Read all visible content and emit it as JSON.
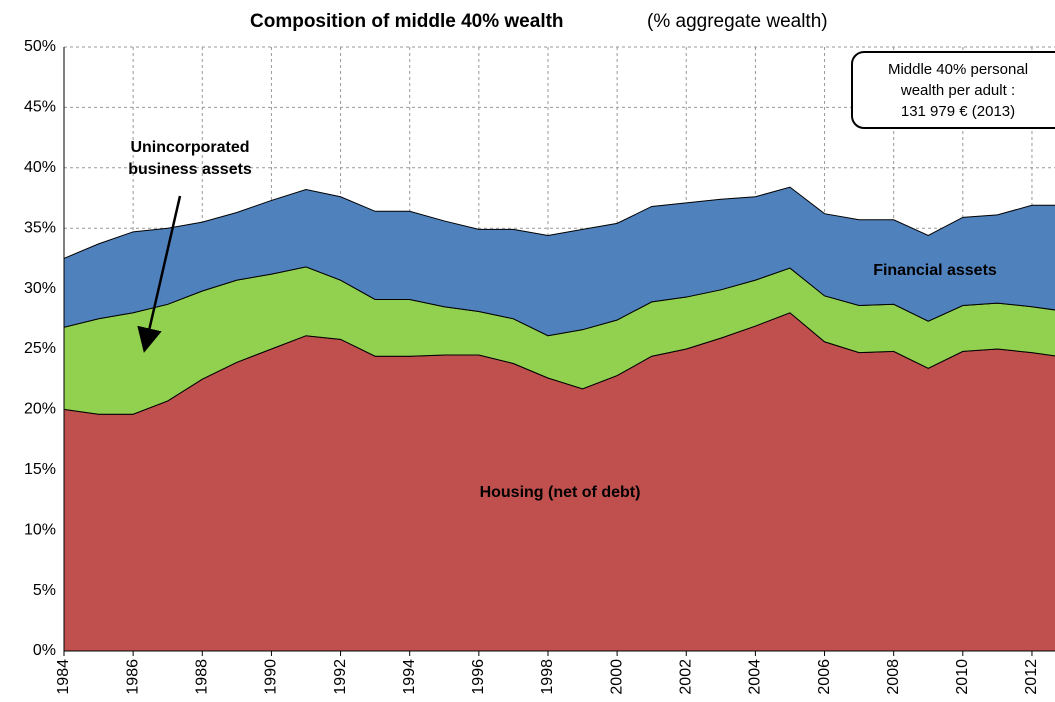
{
  "chart_data": {
    "type": "stacked_area",
    "title": "Composition of middle 40% wealth",
    "title_note": "(% aggregate wealth)",
    "x": [
      1984,
      1985,
      1986,
      1987,
      1988,
      1989,
      1990,
      1991,
      1992,
      1993,
      1994,
      1995,
      1996,
      1997,
      1998,
      1999,
      2000,
      2001,
      2002,
      2003,
      2004,
      2005,
      2006,
      2007,
      2008,
      2009,
      2010,
      2011,
      2012,
      2013
    ],
    "series": [
      {
        "name": "Housing (net of debt)",
        "color": "#c0504d",
        "values": [
          20.0,
          19.6,
          19.6,
          20.7,
          22.5,
          23.9,
          25.0,
          26.1,
          25.8,
          24.4,
          24.4,
          24.5,
          24.5,
          23.8,
          22.6,
          21.7,
          22.8,
          24.4,
          25.0,
          25.9,
          26.9,
          28.0,
          25.6,
          24.7,
          24.8,
          23.4,
          24.8,
          25.0,
          24.7,
          24.3
        ]
      },
      {
        "name": "Unincorporated business assets",
        "color": "#92d050",
        "values": [
          6.8,
          7.9,
          8.4,
          8.0,
          7.3,
          6.8,
          6.2,
          5.7,
          4.9,
          4.7,
          4.7,
          4.0,
          3.6,
          3.7,
          3.5,
          4.9,
          4.6,
          4.5,
          4.3,
          4.0,
          3.8,
          3.7,
          3.8,
          3.9,
          3.9,
          3.9,
          3.8,
          3.8,
          3.8,
          3.8
        ]
      },
      {
        "name": "Financial assets",
        "color": "#4f81bd",
        "values": [
          5.7,
          6.2,
          6.7,
          6.3,
          5.7,
          5.6,
          6.1,
          6.4,
          6.9,
          7.3,
          7.3,
          7.1,
          6.8,
          7.4,
          8.3,
          8.3,
          8.0,
          7.9,
          7.8,
          7.5,
          6.9,
          6.7,
          6.8,
          7.1,
          7.0,
          7.1,
          7.3,
          7.3,
          8.4,
          8.8
        ]
      }
    ],
    "xlim": [
      1984,
      2013
    ],
    "xticks": [
      1984,
      1986,
      1988,
      1990,
      1992,
      1994,
      1996,
      1998,
      2000,
      2002,
      2004,
      2006,
      2008,
      2010,
      2012
    ],
    "ylim": [
      0,
      50
    ],
    "yticks": [
      {
        "value": 0,
        "label": "0%"
      },
      {
        "value": 5,
        "label": "5%"
      },
      {
        "value": 10,
        "label": "10%"
      },
      {
        "value": 15,
        "label": "15%"
      },
      {
        "value": 20,
        "label": "20%"
      },
      {
        "value": 25,
        "label": "25%"
      },
      {
        "value": 30,
        "label": "30%"
      },
      {
        "value": 35,
        "label": "35%"
      },
      {
        "value": 40,
        "label": "40%"
      },
      {
        "value": 45,
        "label": "45%"
      },
      {
        "value": 50,
        "label": "50%"
      }
    ],
    "grid": true,
    "annotations": {
      "business_label": [
        "Unincorporated",
        "business assets"
      ],
      "box": [
        "Middle 40% personal",
        "wealth per adult :",
        "131 979 € (2013)"
      ]
    }
  }
}
